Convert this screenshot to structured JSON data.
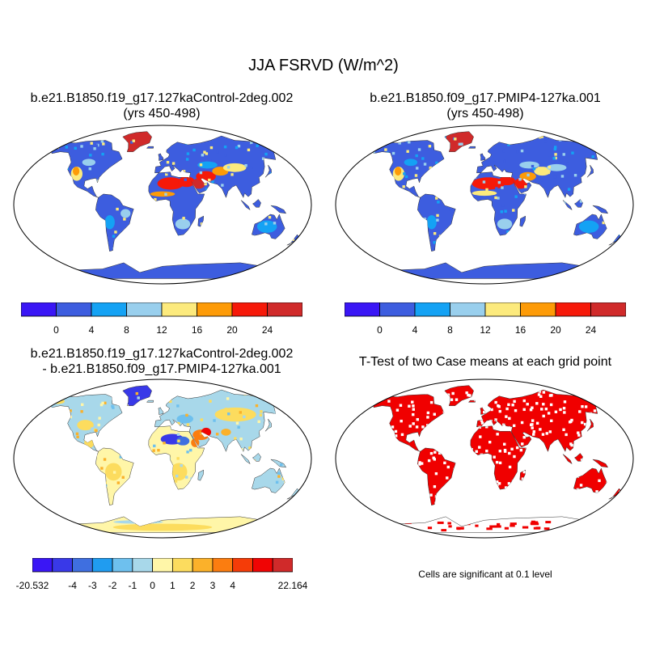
{
  "title": "JJA FSRVD (W/m^2)",
  "panels": [
    {
      "title1": "b.e21.B1850.f19_g17.127kaControl-2deg.002",
      "title2": "(yrs 450-498)"
    },
    {
      "title1": "b.e21.B1850.f09_g17.PMIP4-127ka.001",
      "title2": "(yrs 450-498)"
    },
    {
      "title1": "b.e21.B1850.f19_g17.127kaControl-2deg.002",
      "title2": "- b.e21.B1850.f09_g17.PMIP4-127ka.001"
    },
    {
      "title1": "T-Test of two Case means at each grid point",
      "title2": ""
    }
  ],
  "colorbar_abs": {
    "colors": [
      "#3a16f5",
      "#3d5ddf",
      "#14a2f4",
      "#99cfed",
      "#fcea7d",
      "#fd9b07",
      "#f61909",
      "#d02a2a"
    ],
    "labels": [
      "0",
      "4",
      "8",
      "12",
      "16",
      "20",
      "24"
    ]
  },
  "colorbar_diff": {
    "colors": [
      "#3a16f5",
      "#3939e8",
      "#3f6fe0",
      "#209cf0",
      "#6ec0ee",
      "#a8d8ea",
      "#fff6a8",
      "#fcdc5e",
      "#fbb12a",
      "#fb7d10",
      "#f53c08",
      "#f00404",
      "#d02a2a"
    ],
    "labels": [
      "-20.532",
      "-4",
      "-3",
      "-2",
      "-1",
      "0",
      "1",
      "2",
      "3",
      "4",
      "22.164"
    ]
  },
  "significance_note": "Cells are significant at 0.1 level",
  "map_colors": {
    "ocean": "#ffffff",
    "outline": "#000000",
    "significant": "#f00000"
  }
}
